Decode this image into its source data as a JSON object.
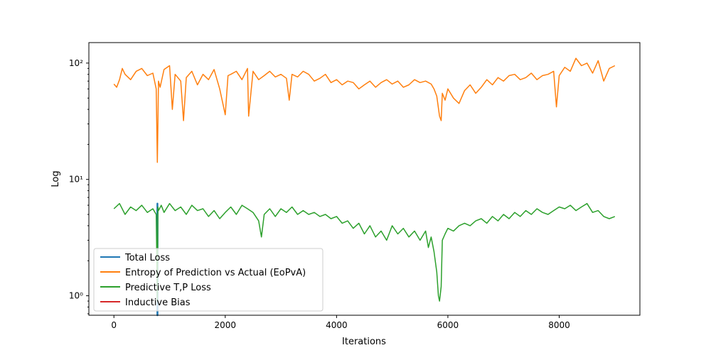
{
  "chart_data": {
    "type": "line",
    "xlabel": "Iterations",
    "ylabel": "Log",
    "yscale": "log",
    "xlim": [
      -450,
      9450
    ],
    "ylim": [
      0.68,
      150
    ],
    "xticks": [
      0,
      2000,
      4000,
      6000,
      8000
    ],
    "yticks": [
      {
        "value": 1,
        "label": "10⁰"
      },
      {
        "value": 10,
        "label": "10¹"
      },
      {
        "value": 100,
        "label": "10²"
      }
    ],
    "legend_position": "lower-left",
    "series": [
      {
        "name": "Total Loss",
        "color": "#1f77b4",
        "x": [
          780,
          781,
          782,
          783,
          784
        ],
        "y": [
          5.5,
          0.68,
          6.2,
          0.68,
          5.8
        ]
      },
      {
        "name": "Entropy of Prediction vs Actual (EoPvA)",
        "color": "#ff7f0e",
        "x": [
          0,
          50,
          100,
          150,
          200,
          300,
          400,
          500,
          600,
          700,
          760,
          780,
          790,
          800,
          830,
          900,
          1000,
          1050,
          1100,
          1200,
          1250,
          1300,
          1400,
          1500,
          1600,
          1700,
          1800,
          1900,
          2000,
          2050,
          2100,
          2200,
          2300,
          2400,
          2420,
          2500,
          2600,
          2700,
          2800,
          2900,
          3000,
          3100,
          3150,
          3200,
          3300,
          3400,
          3500,
          3600,
          3700,
          3800,
          3900,
          4000,
          4100,
          4200,
          4300,
          4400,
          4500,
          4600,
          4700,
          4800,
          4900,
          5000,
          5100,
          5200,
          5300,
          5400,
          5500,
          5600,
          5700,
          5750,
          5800,
          5850,
          5880,
          5900,
          5950,
          6000,
          6100,
          6200,
          6300,
          6400,
          6500,
          6600,
          6700,
          6800,
          6900,
          7000,
          7100,
          7200,
          7300,
          7400,
          7500,
          7600,
          7700,
          7800,
          7900,
          7950,
          8000,
          8100,
          8200,
          8300,
          8400,
          8500,
          8600,
          8700,
          8800,
          8900,
          9000
        ],
        "y": [
          66,
          62,
          72,
          90,
          80,
          72,
          85,
          90,
          78,
          82,
          60,
          14,
          30,
          70,
          62,
          88,
          95,
          40,
          80,
          70,
          32,
          75,
          85,
          65,
          80,
          72,
          88,
          60,
          36,
          78,
          80,
          85,
          72,
          90,
          35,
          85,
          72,
          78,
          85,
          76,
          80,
          74,
          48,
          80,
          76,
          85,
          80,
          70,
          74,
          80,
          68,
          72,
          65,
          70,
          68,
          60,
          65,
          70,
          62,
          68,
          72,
          66,
          70,
          62,
          65,
          72,
          68,
          70,
          66,
          60,
          52,
          35,
          32,
          55,
          48,
          60,
          50,
          45,
          58,
          65,
          55,
          62,
          72,
          65,
          75,
          70,
          78,
          80,
          72,
          75,
          82,
          72,
          78,
          80,
          85,
          42,
          78,
          92,
          85,
          110,
          95,
          100,
          82,
          105,
          70,
          90,
          95
        ]
      },
      {
        "name": "Predictive T,P Loss",
        "color": "#2ca02c",
        "x": [
          0,
          100,
          200,
          300,
          400,
          500,
          600,
          700,
          760,
          780,
          790,
          800,
          850,
          900,
          1000,
          1100,
          1200,
          1300,
          1400,
          1500,
          1600,
          1700,
          1800,
          1900,
          2000,
          2100,
          2200,
          2300,
          2400,
          2500,
          2600,
          2650,
          2700,
          2800,
          2900,
          3000,
          3100,
          3200,
          3300,
          3400,
          3500,
          3600,
          3700,
          3800,
          3900,
          4000,
          4100,
          4200,
          4300,
          4400,
          4500,
          4600,
          4700,
          4800,
          4900,
          5000,
          5100,
          5200,
          5300,
          5400,
          5500,
          5600,
          5650,
          5700,
          5750,
          5800,
          5830,
          5850,
          5880,
          5900,
          5950,
          6000,
          6100,
          6200,
          6300,
          6400,
          6500,
          6600,
          6700,
          6800,
          6900,
          7000,
          7100,
          7200,
          7300,
          7400,
          7500,
          7600,
          7700,
          7800,
          7900,
          8000,
          8100,
          8200,
          8300,
          8400,
          8500,
          8600,
          8700,
          8800,
          8900,
          9000
        ],
        "y": [
          5.6,
          6.2,
          5.0,
          5.8,
          5.4,
          6.0,
          5.2,
          5.6,
          5.0,
          0.9,
          5.8,
          5.4,
          6.0,
          5.2,
          6.2,
          5.4,
          5.8,
          5.0,
          6.0,
          5.4,
          5.6,
          4.8,
          5.4,
          4.6,
          5.2,
          5.8,
          5.0,
          6.0,
          5.6,
          5.2,
          4.4,
          3.2,
          5.0,
          5.6,
          4.8,
          5.6,
          5.2,
          5.8,
          5.0,
          5.4,
          5.0,
          5.2,
          4.8,
          5.0,
          4.6,
          4.8,
          4.2,
          4.4,
          3.8,
          4.2,
          3.4,
          4.0,
          3.2,
          3.6,
          3.0,
          4.0,
          3.4,
          3.8,
          3.2,
          3.6,
          3.0,
          3.6,
          2.6,
          3.2,
          2.4,
          1.6,
          1.0,
          0.9,
          1.2,
          3.0,
          3.4,
          3.8,
          3.6,
          4.0,
          4.2,
          4.0,
          4.4,
          4.6,
          4.2,
          4.8,
          4.4,
          5.0,
          4.6,
          5.2,
          4.8,
          5.4,
          5.0,
          5.6,
          5.2,
          5.0,
          5.4,
          5.8,
          5.6,
          6.0,
          5.4,
          5.8,
          6.2,
          5.2,
          5.4,
          4.8,
          4.6,
          4.8
        ]
      },
      {
        "name": "Inductive Bias",
        "color": "#d62728",
        "x": [],
        "y": []
      }
    ]
  }
}
